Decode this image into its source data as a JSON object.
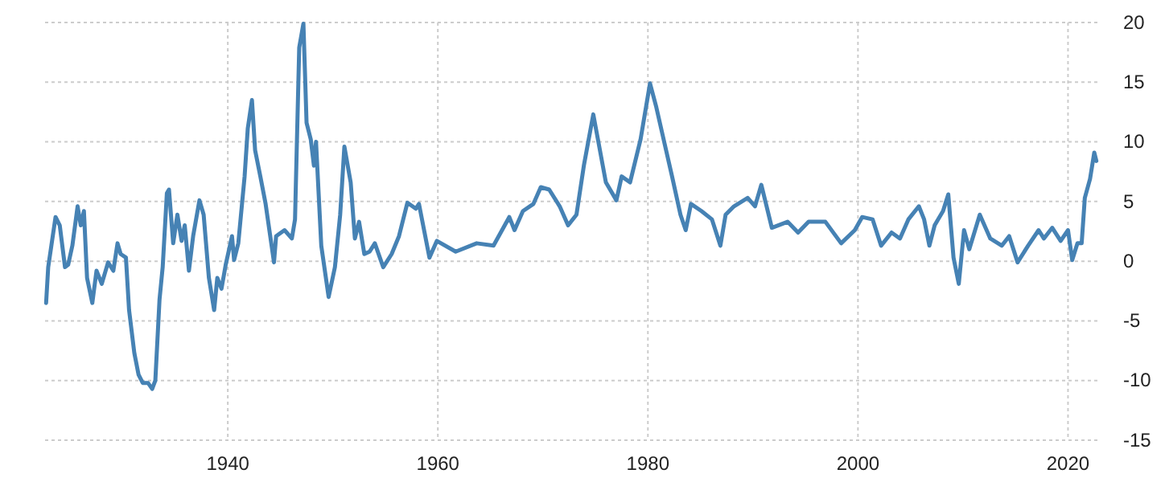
{
  "chart_data": {
    "type": "line",
    "x": [
      1922.7,
      1922.9,
      1923.2,
      1923.6,
      1924.0,
      1924.5,
      1924.8,
      1925.2,
      1925.7,
      1926.0,
      1926.3,
      1926.6,
      1927.1,
      1927.5,
      1928.0,
      1928.6,
      1929.1,
      1929.5,
      1929.8,
      1930.3,
      1930.6,
      1931.1,
      1931.5,
      1931.9,
      1932.4,
      1932.8,
      1933.1,
      1933.5,
      1933.8,
      1934.2,
      1934.4,
      1934.8,
      1935.2,
      1935.6,
      1935.9,
      1936.3,
      1936.7,
      1937.3,
      1937.7,
      1938.2,
      1938.7,
      1939.0,
      1939.4,
      1939.8,
      1940.4,
      1940.6,
      1941.0,
      1941.6,
      1941.9,
      1942.3,
      1942.6,
      1943.1,
      1943.6,
      1944.4,
      1944.6,
      1945.4,
      1946.1,
      1946.4,
      1946.8,
      1947.2,
      1947.5,
      1947.9,
      1948.2,
      1948.4,
      1948.9,
      1949.6,
      1950.2,
      1950.7,
      1951.1,
      1951.7,
      1952.1,
      1952.5,
      1953.0,
      1953.5,
      1954.0,
      1954.8,
      1955.6,
      1956.3,
      1957.1,
      1957.9,
      1958.2,
      1959.2,
      1959.9,
      1961.7,
      1963.7,
      1965.3,
      1966.8,
      1967.3,
      1968.1,
      1969.1,
      1969.8,
      1970.6,
      1971.6,
      1972.4,
      1973.2,
      1973.9,
      1974.8,
      1976.0,
      1977.0,
      1977.5,
      1978.3,
      1979.3,
      1980.2,
      1980.8,
      1981.6,
      1982.3,
      1983.1,
      1983.6,
      1984.1,
      1985.1,
      1986.1,
      1986.9,
      1987.4,
      1988.2,
      1989.5,
      1990.2,
      1990.8,
      1991.8,
      1993.3,
      1994.3,
      1995.3,
      1996.9,
      1998.4,
      1999.7,
      2000.4,
      2001.4,
      2002.2,
      2003.2,
      2004.0,
      2004.8,
      2005.8,
      2006.3,
      2006.8,
      2007.3,
      2008.1,
      2008.6,
      2009.1,
      2009.6,
      2010.1,
      2010.6,
      2011.6,
      2012.6,
      2013.7,
      2014.4,
      2015.2,
      2016.2,
      2017.2,
      2017.7,
      2018.5,
      2019.3,
      2020.0,
      2020.4,
      2020.9,
      2021.3,
      2021.6,
      2022.1,
      2022.5,
      2022.7
    ],
    "series": [
      {
        "color": "#4682b4",
        "values": [
          -3.5,
          -0.5,
          1.3,
          3.7,
          3.0,
          -0.5,
          -0.3,
          1.3,
          4.6,
          3.0,
          4.2,
          -1.4,
          -3.5,
          -0.8,
          -1.9,
          -0.1,
          -0.8,
          1.5,
          0.6,
          0.3,
          -4.1,
          -7.7,
          -9.5,
          -10.2,
          -10.2,
          -10.7,
          -10.0,
          -3.2,
          -0.5,
          5.7,
          6.0,
          1.5,
          3.9,
          1.7,
          3.0,
          -0.8,
          2.1,
          5.1,
          3.9,
          -1.4,
          -4.1,
          -1.4,
          -2.3,
          -0.3,
          2.1,
          0.1,
          1.5,
          7.1,
          11.1,
          13.5,
          9.3,
          7.1,
          4.8,
          -0.1,
          2.1,
          2.6,
          1.9,
          3.5,
          17.9,
          19.9,
          11.6,
          10.2,
          8.0,
          10.0,
          1.3,
          -3.0,
          -0.5,
          3.9,
          9.6,
          6.6,
          1.9,
          3.3,
          0.6,
          0.8,
          1.5,
          -0.5,
          0.6,
          2.1,
          4.9,
          4.4,
          4.8,
          0.3,
          1.7,
          0.8,
          1.5,
          1.3,
          3.7,
          2.6,
          4.2,
          4.8,
          6.2,
          6.0,
          4.6,
          3.0,
          3.9,
          8.0,
          12.3,
          6.6,
          5.1,
          7.1,
          6.6,
          10.2,
          14.9,
          12.9,
          9.8,
          7.1,
          3.9,
          2.6,
          4.8,
          4.2,
          3.5,
          1.3,
          3.9,
          4.6,
          5.3,
          4.6,
          6.4,
          2.8,
          3.3,
          2.4,
          3.3,
          3.3,
          1.5,
          2.6,
          3.7,
          3.5,
          1.3,
          2.4,
          1.9,
          3.5,
          4.6,
          3.5,
          1.3,
          3.0,
          4.2,
          5.6,
          0.3,
          -1.9,
          2.6,
          1.0,
          3.9,
          1.9,
          1.3,
          2.1,
          -0.1,
          1.3,
          2.6,
          1.9,
          2.8,
          1.7,
          2.6,
          0.1,
          1.5,
          1.5,
          5.3,
          6.9,
          9.1,
          8.4
        ]
      }
    ],
    "xlim": [
      1922.6,
      2022.8
    ],
    "xticks": [
      1940,
      1960,
      1980,
      2000,
      2020
    ],
    "ylim": [
      -15,
      20
    ],
    "yticks": [
      -15,
      -10,
      -5,
      0,
      5,
      10,
      15,
      20
    ],
    "grid": true,
    "line_style": "solid"
  }
}
